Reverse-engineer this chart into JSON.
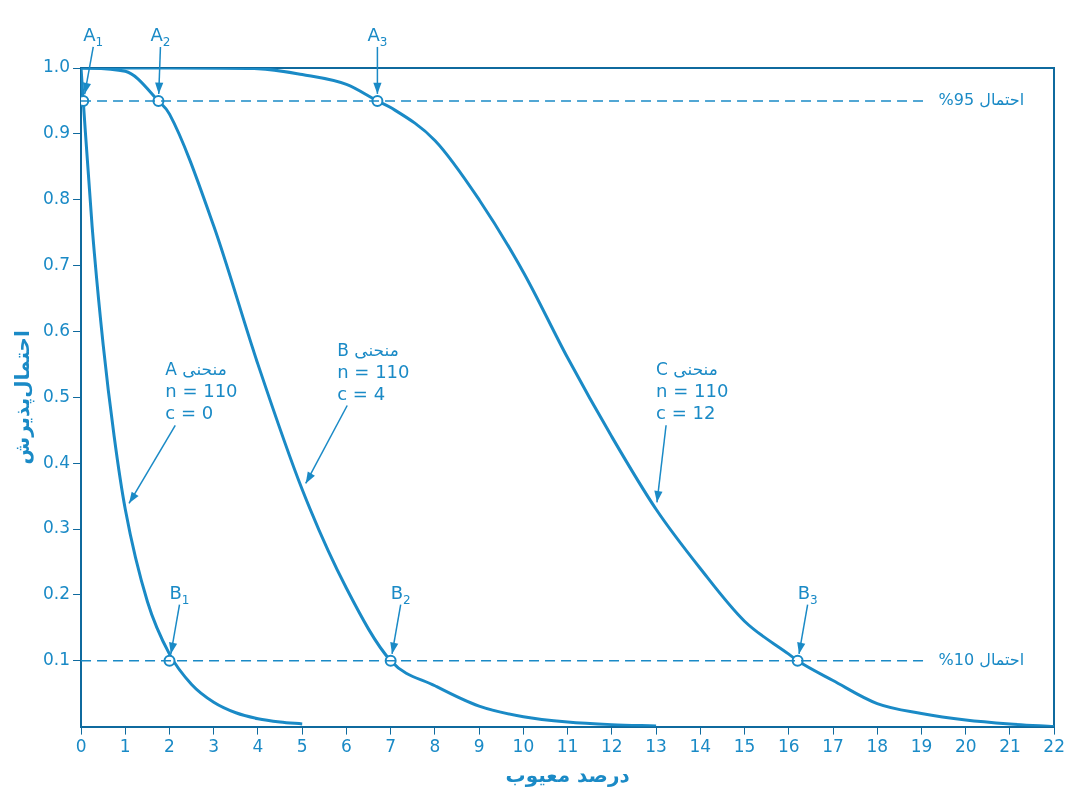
{
  "chart_data": {
    "type": "line",
    "xlabel": "درصد معیوب",
    "ylabel": "احتمال‌پذیرش",
    "xlim": [
      0,
      22
    ],
    "xticks": [
      0,
      1,
      2,
      3,
      4,
      5,
      6,
      7,
      8,
      9,
      10,
      11,
      12,
      13,
      14,
      15,
      16,
      17,
      18,
      19,
      20,
      21,
      22
    ],
    "ylim": [
      0,
      1.0
    ],
    "yticks": [
      {
        "value": 0.1,
        "label": "0.1"
      },
      {
        "value": 0.2,
        "label": "0.2"
      },
      {
        "value": 0.3,
        "label": "0.3"
      },
      {
        "value": 0.4,
        "label": "0.4"
      },
      {
        "value": 0.5,
        "label": "0.5"
      },
      {
        "value": 0.6,
        "label": "0.6"
      },
      {
        "value": 0.7,
        "label": "0.7"
      },
      {
        "value": 0.8,
        "label": "0.8"
      },
      {
        "value": 0.9,
        "label": "0.9"
      },
      {
        "value": 1.0,
        "label": "1.0"
      }
    ],
    "grid": false,
    "legend": false,
    "marker": "none",
    "line_style": "solid",
    "series": [
      {
        "color": "#1a8ac6",
        "x": [
          0,
          0.05,
          0.25,
          0.5,
          0.75,
          1,
          1.5,
          2,
          2.5,
          3,
          3.5,
          4,
          4.5,
          5
        ],
        "values": [
          1,
          0.95,
          0.76,
          0.58,
          0.44,
          0.33,
          0.19,
          0.11,
          0.064,
          0.037,
          0.021,
          0.012,
          0.007,
          0.004
        ]
      },
      {
        "color": "#1a8ac6",
        "x": [
          0,
          1,
          1.75,
          2,
          3,
          4,
          5,
          6,
          7,
          8,
          9,
          10,
          11,
          12,
          13
        ],
        "values": [
          1,
          0.995,
          0.95,
          0.93,
          0.76,
          0.55,
          0.36,
          0.21,
          0.1,
          0.062,
          0.031,
          0.015,
          0.007,
          0.003,
          0.001
        ]
      },
      {
        "color": "#1a8ac6",
        "x": [
          0,
          2,
          4,
          5,
          6,
          6.7,
          7,
          8,
          9,
          10,
          11,
          12,
          13,
          14,
          15,
          16,
          16.2,
          17,
          18,
          19,
          20,
          21,
          22
        ],
        "values": [
          1,
          1.0,
          0.999,
          0.99,
          0.975,
          0.95,
          0.94,
          0.89,
          0.8,
          0.69,
          0.56,
          0.44,
          0.33,
          0.24,
          0.16,
          0.11,
          0.1,
          0.07,
          0.035,
          0.02,
          0.01,
          0.004,
          0
        ]
      },
      {
        "type": "scatter",
        "marker": "circle",
        "color": "#1a8ac6",
        "x": [
          0.05,
          1.75,
          6.7,
          2,
          7,
          16.2
        ],
        "values": [
          0.95,
          0.95,
          0.95,
          0.1,
          0.1,
          0.1
        ]
      }
    ],
    "ref_lines": [
      {
        "axis": "y",
        "value": 0.95,
        "label": "احتمال 95%",
        "line_style": "dashed",
        "color": "#1a8ac6"
      },
      {
        "axis": "y",
        "value": 0.1,
        "label": "احتمال 10%",
        "line_style": "dashed",
        "color": "#1a8ac6"
      }
    ],
    "annotations": [
      {
        "text": "A$_{1}$",
        "x": 0.05,
        "y": 0.95
      },
      {
        "text": "A$_{2}$",
        "x": 1.75,
        "y": 0.95
      },
      {
        "text": "A$_{3}$",
        "x": 6.7,
        "y": 0.95
      },
      {
        "text": "B$_{1}$",
        "x": 2,
        "y": 0.1
      },
      {
        "text": "B$_{2}$",
        "x": 7,
        "y": 0.1
      },
      {
        "text": "B$_{3}$",
        "x": 16.2,
        "y": 0.1
      },
      {
        "text": "منحنی A\nn = 110\nc = 0",
        "x": 1,
        "y": 0.33
      },
      {
        "text": "منحنی B\nn = 110\nc = 4",
        "x": 5,
        "y": 0.36
      },
      {
        "text": "منحنی C\nn = 110\nc = 12",
        "x": 13,
        "y": 0.33
      }
    ]
  }
}
